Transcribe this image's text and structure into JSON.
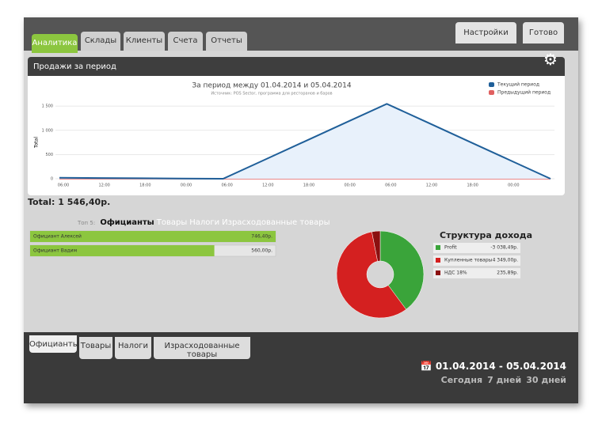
{
  "tabs": [
    "Аналитика",
    "Склады",
    "Клиенты",
    "Счета",
    "Отчеты"
  ],
  "buttons": [
    "Настройки",
    "Готово"
  ],
  "panel_title": "Продажи за период",
  "total": "Total: 1 546,40р.",
  "top": {
    "label": "Топ 5:",
    "tabs": [
      "Официанты",
      "Товары",
      "Налоги",
      "Израсходованные товары"
    ]
  },
  "bottom_tabs": [
    "Официанты",
    "Товары",
    "Налоги",
    "Израсходованные товары"
  ],
  "date_range": "01.04.2014 - 05.04.2014",
  "quick_ranges": [
    "Сегодня",
    "7 дней",
    "30 дней"
  ],
  "chart_data": [
    {
      "type": "line",
      "title": "За период между 01.04.2014 и 05.04.2014",
      "subtitle": "Источник: POS Sector, программа для ресторанов и баров",
      "y_label": "Total",
      "categories": [
        "06:00",
        "12:00",
        "18:00",
        "00:00",
        "06:00",
        "12:00",
        "18:00",
        "00:00",
        "06:00",
        "12:00",
        "18:00",
        "00:00",
        null
      ],
      "series": [
        {
          "name": "Текущий период",
          "color": "#1f5f99",
          "values": [
            20,
            15,
            10,
            5,
            0,
            386,
            773,
            1160,
            1546,
            1160,
            773,
            386,
            0
          ]
        },
        {
          "name": "Предыдущий период",
          "color": "#e06060",
          "values": [
            0,
            0,
            0,
            0,
            0,
            0,
            0,
            0,
            0,
            0,
            0,
            0,
            0
          ]
        }
      ],
      "ylim": [
        0,
        1600
      ],
      "yticks": [
        0,
        500,
        {
          "value": 1000,
          "label": "1 000"
        },
        {
          "value": 1500,
          "label": "1 500"
        }
      ],
      "grid": true,
      "legend": "top-right"
    },
    {
      "type": "hbar",
      "categories": [
        "Официант Алексей",
        "Официант Вадим"
      ],
      "values": [
        746.4,
        560
      ],
      "value_labels": [
        "746,40р.",
        "560,00р."
      ],
      "xlim": [
        0,
        746.4
      ],
      "color": "#8cc63f"
    },
    {
      "type": "donut",
      "title": "Структура дохода",
      "categories": [
        "Profit",
        "Купленные товары",
        "НДС 18%"
      ],
      "values": [
        -3038.49,
        4349,
        235.89
      ],
      "value_labels": [
        "-3 038,49р.",
        "4 349,00р.",
        "235,89р."
      ],
      "colors": [
        "#3aa43a",
        "#d42020",
        "#8b1010"
      ]
    }
  ]
}
